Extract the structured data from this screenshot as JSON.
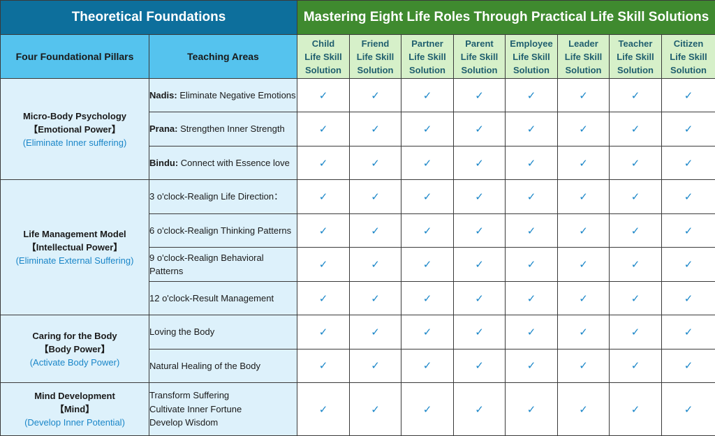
{
  "header": {
    "theoretical_foundations": "Theoretical Foundations",
    "mastering": "Mastering Eight Life Roles Through Practical Life Skill Solutions",
    "pillars_col": "Four Foundational Pillars",
    "areas_col": "Teaching Areas",
    "roles": [
      {
        "name": "Child",
        "line2": "Life Skill",
        "line3": "Solution"
      },
      {
        "name": "Friend",
        "line2": "Life Skill",
        "line3": "Solution"
      },
      {
        "name": "Partner",
        "line2": "Life Skill",
        "line3": "Solution"
      },
      {
        "name": "Parent",
        "line2": "Life Skill",
        "line3": "Solution"
      },
      {
        "name": "Employee",
        "line2": "Life Skill",
        "line3": "Solution"
      },
      {
        "name": "Leader",
        "line2": "Life Skill",
        "line3": "Solution"
      },
      {
        "name": "Teacher",
        "line2": "Life Skill",
        "line3": "Solution"
      },
      {
        "name": "Citizen",
        "line2": "Life Skill",
        "line3": "Solution"
      }
    ]
  },
  "check_glyph": "✓",
  "check_color": "#1a86c8",
  "pillars": [
    {
      "name": "Micro-Body Psychology",
      "power": "【Emotional Power】",
      "subtitle": "(Eliminate Inner suffering)",
      "areas": [
        {
          "bold": "Nadis:",
          "text": " Eliminate Negative Emotions"
        },
        {
          "bold": "Prana:",
          "text": " Strengthen Inner Strength"
        },
        {
          "bold": "Bindu:",
          "text": " Connect with Essence love"
        }
      ]
    },
    {
      "name": "Life Management Model",
      "power": "【Intellectual Power】",
      "subtitle": "(Eliminate External Suffering)",
      "areas": [
        {
          "bold": "",
          "text": "3 o'clock-Realign Life Direction："
        },
        {
          "bold": "",
          "text": "6 o'clock-Realign Thinking Patterns"
        },
        {
          "bold": "",
          "text": "9 o'clock-Realign Behavioral Patterns"
        },
        {
          "bold": "",
          "text": "12 o'clock-Result Management"
        }
      ]
    },
    {
      "name": "Caring for the Body",
      "power": "【Body Power】",
      "subtitle": "(Activate Body Power)",
      "areas": [
        {
          "bold": "",
          "text": "Loving the Body"
        },
        {
          "bold": "",
          "text": "Natural Healing of the Body"
        }
      ]
    },
    {
      "name": "Mind Development",
      "power": "【Mind】",
      "subtitle": "(Develop Inner Potential)",
      "areas": [
        {
          "bold": "",
          "text": "",
          "lines": [
            "Transform Suffering",
            "Cultivate Inner Fortune",
            "Develop Wisdom"
          ]
        }
      ]
    }
  ]
}
